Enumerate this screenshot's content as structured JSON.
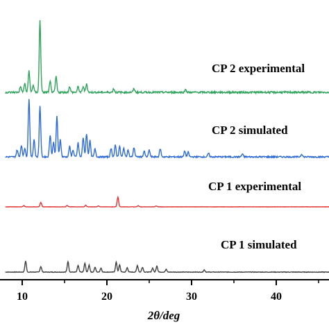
{
  "chart_data": {
    "type": "line",
    "xlabel": "2θ/deg",
    "ylabel": "",
    "title": "",
    "xlim": [
      8,
      50
    ],
    "xticks": [
      10,
      20,
      30,
      40
    ],
    "grid": false,
    "legend": "none",
    "series": [
      {
        "name": "CP 1 simulated",
        "color": "#404040",
        "peaks": [
          [
            10.4,
            0.5
          ],
          [
            12.2,
            0.25
          ],
          [
            15.4,
            0.48
          ],
          [
            16.6,
            0.3
          ],
          [
            17.4,
            0.4
          ],
          [
            17.9,
            0.32
          ],
          [
            18.6,
            0.22
          ],
          [
            19.3,
            0.18
          ],
          [
            21.1,
            0.45
          ],
          [
            21.5,
            0.32
          ],
          [
            22.4,
            0.2
          ],
          [
            23.6,
            0.3
          ],
          [
            24.2,
            0.22
          ],
          [
            25.4,
            0.18
          ],
          [
            25.9,
            0.28
          ],
          [
            27.0,
            0.12
          ],
          [
            31.5,
            0.1
          ]
        ]
      },
      {
        "name": "CP 1 experimental",
        "color": "#e03030",
        "peaks": [
          [
            10.2,
            0.12
          ],
          [
            12.2,
            0.45
          ],
          [
            15.3,
            0.14
          ],
          [
            17.5,
            0.16
          ],
          [
            19.0,
            0.1
          ],
          [
            21.3,
            1.0
          ],
          [
            23.7,
            0.12
          ],
          [
            25.8,
            0.1
          ]
        ]
      },
      {
        "name": "CP 2 simulated",
        "color": "#2d6ad6",
        "peaks": [
          [
            9.4,
            0.12
          ],
          [
            9.9,
            0.2
          ],
          [
            10.3,
            0.15
          ],
          [
            10.8,
            1.0
          ],
          [
            11.4,
            0.3
          ],
          [
            12.1,
            0.88
          ],
          [
            13.3,
            0.38
          ],
          [
            13.7,
            0.25
          ],
          [
            14.1,
            0.7
          ],
          [
            14.5,
            0.3
          ],
          [
            15.6,
            0.18
          ],
          [
            16.0,
            0.12
          ],
          [
            16.6,
            0.24
          ],
          [
            17.2,
            0.33
          ],
          [
            17.6,
            0.4
          ],
          [
            18.0,
            0.28
          ],
          [
            18.6,
            0.14
          ],
          [
            20.5,
            0.15
          ],
          [
            21.0,
            0.2
          ],
          [
            21.5,
            0.18
          ],
          [
            22.0,
            0.15
          ],
          [
            22.5,
            0.12
          ],
          [
            23.2,
            0.16
          ],
          [
            24.4,
            0.1
          ],
          [
            25.0,
            0.12
          ],
          [
            26.3,
            0.14
          ],
          [
            29.2,
            0.1
          ],
          [
            29.6,
            0.08
          ],
          [
            32.0,
            0.06
          ],
          [
            36.0,
            0.05
          ],
          [
            43.0,
            0.05
          ]
        ]
      },
      {
        "name": "CP 2 experimental",
        "color": "#2ea35b",
        "peaks": [
          [
            9.8,
            0.08
          ],
          [
            10.3,
            0.12
          ],
          [
            10.8,
            0.3
          ],
          [
            11.3,
            0.1
          ],
          [
            12.1,
            1.0
          ],
          [
            13.3,
            0.15
          ],
          [
            14.0,
            0.22
          ],
          [
            15.6,
            0.08
          ],
          [
            16.6,
            0.08
          ],
          [
            17.2,
            0.08
          ],
          [
            17.6,
            0.12
          ],
          [
            20.8,
            0.05
          ],
          [
            23.2,
            0.05
          ],
          [
            29.3,
            0.04
          ]
        ]
      }
    ]
  }
}
